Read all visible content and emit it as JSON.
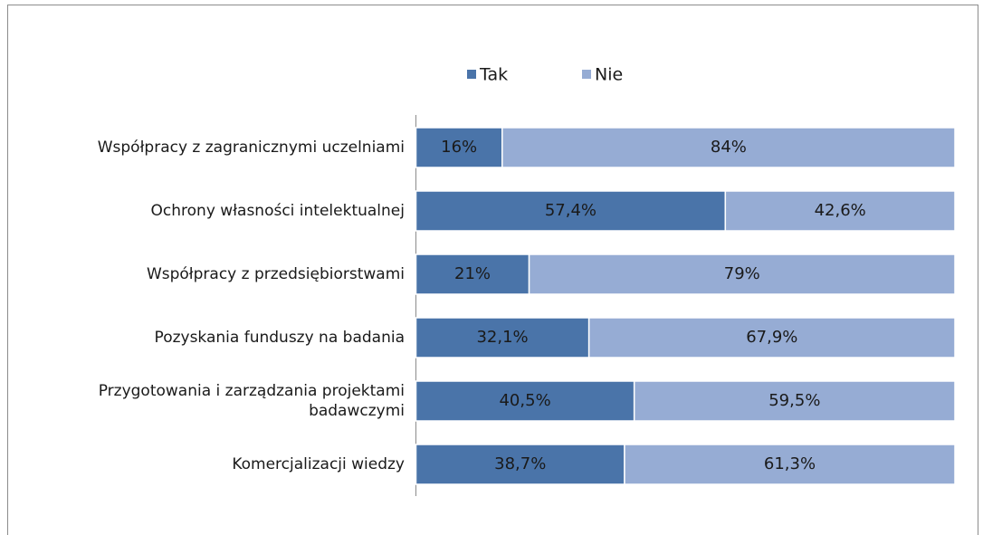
{
  "chart_data": {
    "type": "stacked-bar-horizontal",
    "categories": [
      "Współpracy z zagranicznymi uczelniami",
      "Ochrony własności intelektualnej",
      "Współpracy z przedsiębiorstwami",
      "Pozyskania funduszy na badania",
      "Przygotowania i zarządzania projektami badawczymi",
      "Komercjalizacji wiedzy"
    ],
    "series": [
      {
        "name": "Tak",
        "color": "#4a74a9",
        "values": [
          16,
          57.4,
          21,
          32.1,
          40.5,
          38.7
        ],
        "value_labels": [
          "16%",
          "57,4%",
          "21%",
          "32,1%",
          "40,5%",
          "38,7%"
        ]
      },
      {
        "name": "Nie",
        "color": "#96acd4",
        "values": [
          84,
          42.6,
          79,
          67.9,
          59.5,
          61.3
        ],
        "value_labels": [
          "84%",
          "42,6%",
          "79%",
          "67,9%",
          "59,5%",
          "61,3%"
        ]
      }
    ],
    "xlim": [
      0,
      100
    ],
    "legend": "top"
  }
}
